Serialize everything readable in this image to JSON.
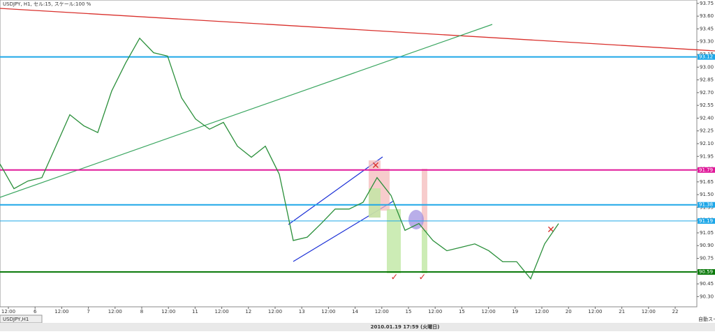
{
  "header": {
    "title": "USDJPY, H1, セル:15, スケール:100 %"
  },
  "chart": {
    "type": "price_trace",
    "ylim": [
      90.18,
      93.79
    ],
    "yticks": [
      93.75,
      {
        "value": 93.6,
        "label": "93.60"
      },
      93.45,
      {
        "value": 93.3,
        "label": "93.30"
      },
      93.15,
      {
        "value": 93,
        "label": "93.00"
      },
      92.85,
      {
        "value": 92.7,
        "label": "92.70"
      },
      92.55,
      {
        "value": 92.4,
        "label": "92.40"
      },
      92.25,
      {
        "value": 92.1,
        "label": "92.10"
      },
      91.95,
      {
        "value": 91.8,
        "label": "91.80"
      },
      91.65,
      {
        "value": 91.5,
        "label": "91.50"
      },
      91.35,
      {
        "value": 91.2,
        "label": "91.20"
      },
      91.05,
      {
        "value": 90.9,
        "label": "90.90"
      },
      90.75,
      {
        "value": 90.6,
        "label": "90.60"
      },
      90.45,
      {
        "value": 90.3,
        "label": "90.30"
      }
    ],
    "levels": [
      {
        "value": 93.12,
        "color": "#1ea7e8"
      },
      {
        "value": 91.79,
        "color": "#e0199a"
      },
      {
        "value": 91.38,
        "color": "#1ea7e8"
      },
      {
        "value": 91.19,
        "color": "#1ea7e8"
      },
      {
        "value": 90.59,
        "color": "#0b7a0b"
      }
    ],
    "color": "#2a8f3a",
    "values": [
      91.86,
      91.57,
      91.66,
      91.7,
      92.07,
      92.44,
      92.31,
      92.23,
      92.72,
      93.05,
      93.34,
      93.17,
      93.13,
      92.64,
      92.39,
      92.27,
      92.35,
      92.07,
      91.94,
      92.07,
      91.74,
      90.96,
      91.0,
      91.16,
      91.33,
      91.33,
      91.41,
      91.7,
      91.49,
      91.08,
      91.16,
      90.96,
      90.84,
      90.88,
      90.92,
      90.84,
      90.71,
      90.71,
      90.51,
      90.92,
      91.16
    ]
  },
  "time_axis": {
    "labels": [
      "12:00",
      "6",
      "12:00",
      "7",
      "12:00",
      "8",
      "12:00",
      "11",
      "12:00",
      "12",
      "12:00",
      "13",
      "12:00",
      "14",
      "12:00",
      "15",
      "12:00",
      "15",
      "12:00",
      "19",
      "12:00",
      "20",
      "12:00",
      "21",
      "12:00",
      "22"
    ]
  },
  "tab": {
    "label": "USDJPY,H1"
  },
  "status": {
    "datetime": "2010.01.19 17:59 (火曜日)",
    "right": "自動スー"
  }
}
